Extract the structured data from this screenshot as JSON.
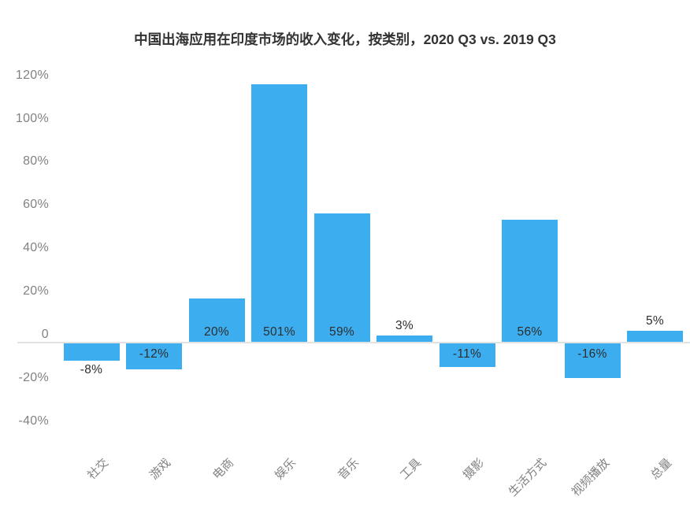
{
  "chart_data": {
    "type": "bar",
    "title": "中国出海应用在印度市场的收入变化，按类别，2020 Q3 vs. 2019 Q3",
    "categories": [
      "社交",
      "游戏",
      "电商",
      "娱乐",
      "音乐",
      "工具",
      "摄影",
      "生活方式",
      "视频播放",
      "总量"
    ],
    "values": [
      -8,
      -12,
      20,
      501,
      59,
      3,
      -11,
      56,
      -16,
      5
    ],
    "value_labels": [
      "-8%",
      "-12%",
      "20%",
      "501%",
      "59%",
      "3%",
      "-11%",
      "56%",
      "-16%",
      "5%"
    ],
    "y_ticks": [
      {
        "value": 120,
        "label": "120%"
      },
      {
        "value": 100,
        "label": "100%"
      },
      {
        "value": 80,
        "label": "80%"
      },
      {
        "value": 60,
        "label": "60%"
      },
      {
        "value": 40,
        "label": "40%"
      },
      {
        "value": 20,
        "label": "20%"
      },
      {
        "value": 0,
        "label": "0"
      },
      {
        "value": -20,
        "label": "-20%"
      },
      {
        "value": -40,
        "label": "-40%"
      }
    ],
    "ylim": [
      -40,
      120
    ],
    "xlabel": "",
    "ylabel": "",
    "legend": "none",
    "grid": "zero-line-only",
    "bar_clipped_at_axis_top": "娱乐",
    "colors": {
      "bar": "#3caef0",
      "title": "#333333",
      "axis_text": "#828282",
      "value_text": "#2d2d2d",
      "zero_line": "#e2e2e2",
      "background": "#ffffff"
    }
  }
}
